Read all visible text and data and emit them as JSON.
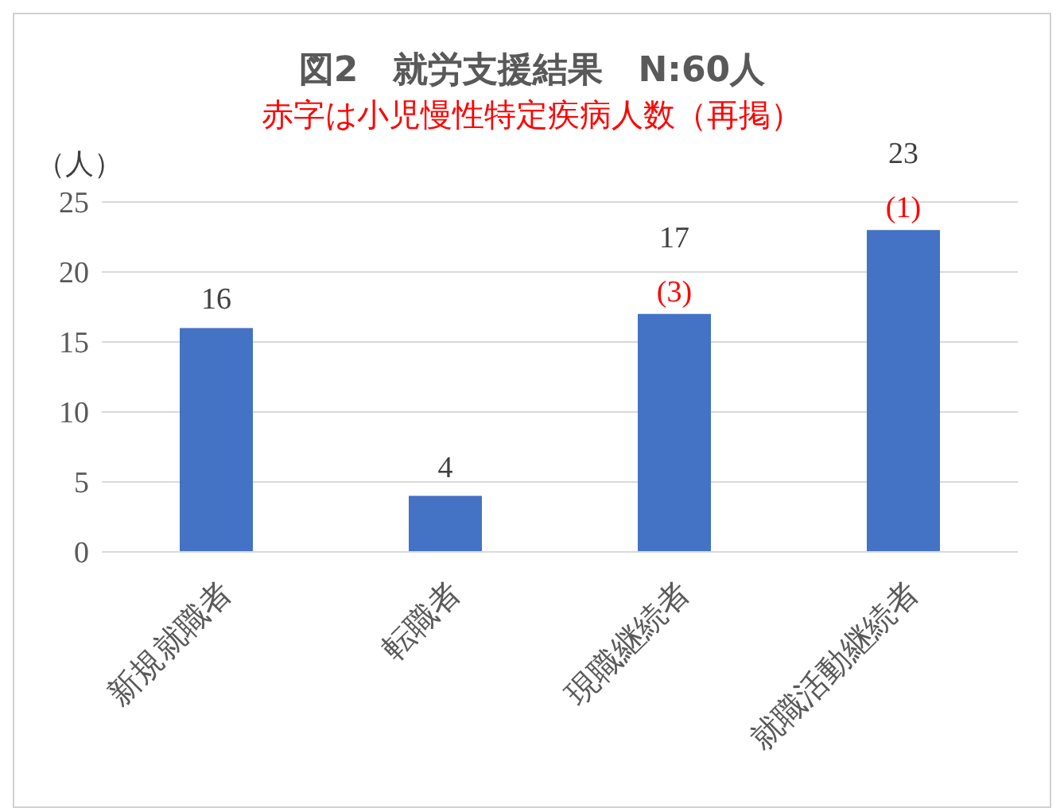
{
  "chart_data": {
    "type": "bar",
    "title": "図2　就労支援結果　N:60人",
    "subtitle": "赤字は小児慢性特定疾病人数（再掲）",
    "ylabel": "（人）",
    "categories": [
      "新規就職者",
      "転職者",
      "現職継続者",
      "就職活動継続者"
    ],
    "values": [
      16,
      4,
      17,
      23
    ],
    "color": "#4472c4",
    "ylim": [
      0,
      25
    ],
    "yticks": [
      0,
      5,
      10,
      15,
      20,
      25
    ],
    "grid": "y",
    "data_labels": true,
    "annotations": [
      {
        "text": "(3)",
        "x": "現職継続者",
        "y": 17
      },
      {
        "text": "(1)",
        "x": "就職活動継続者",
        "y": 23
      }
    ]
  }
}
